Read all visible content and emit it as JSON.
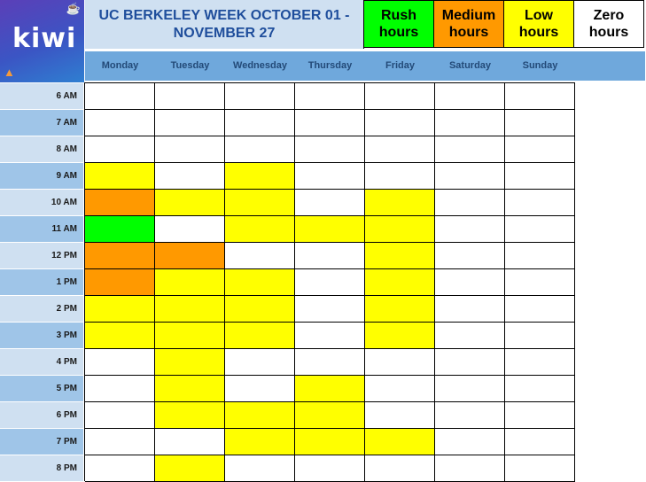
{
  "logo": {
    "text": "kiwi",
    "icon_top": "drink-icon",
    "icon_bottom": "pizza-icon"
  },
  "title": "UC BERKELEY WEEK OCTOBER 01 - NOVEMBER 27",
  "legend": [
    {
      "label": "Rush hours",
      "color": "#00ff00",
      "key": "rush"
    },
    {
      "label": "Medium hours",
      "color": "#ff9900",
      "key": "medium"
    },
    {
      "label": "Low hours",
      "color": "#ffff00",
      "key": "low"
    },
    {
      "label": "Zero hours",
      "color": "#ffffff",
      "key": "zero"
    }
  ],
  "days": [
    "Monday",
    "Tuesday",
    "Wednesday",
    "Thursday",
    "Friday",
    "Saturday",
    "Sunday"
  ],
  "hours": [
    "6 AM",
    "7 AM",
    "8 AM",
    "9 AM",
    "10 AM",
    "11 AM",
    "12 PM",
    "1 PM",
    "2 PM",
    "3 PM",
    "4 PM",
    "5 PM",
    "6 PM",
    "7 PM",
    "8 PM"
  ],
  "colors": {
    "rush": "#00ff00",
    "medium": "#ff9900",
    "low": "#ffff00",
    "zero": "#ffffff"
  },
  "label_band_colors": {
    "light": "#cfe0f1",
    "dark": "#9fc5e8"
  },
  "grid": [
    [
      "zero",
      "zero",
      "zero",
      "zero",
      "zero",
      "zero",
      "zero"
    ],
    [
      "zero",
      "zero",
      "zero",
      "zero",
      "zero",
      "zero",
      "zero"
    ],
    [
      "zero",
      "zero",
      "zero",
      "zero",
      "zero",
      "zero",
      "zero"
    ],
    [
      "low",
      "zero",
      "low",
      "zero",
      "zero",
      "zero",
      "zero"
    ],
    [
      "medium",
      "low",
      "low",
      "zero",
      "low",
      "zero",
      "zero"
    ],
    [
      "rush",
      "zero",
      "low",
      "low",
      "low",
      "zero",
      "zero"
    ],
    [
      "medium",
      "medium",
      "zero",
      "zero",
      "low",
      "zero",
      "zero"
    ],
    [
      "medium",
      "low",
      "low",
      "zero",
      "low",
      "zero",
      "zero"
    ],
    [
      "low",
      "low",
      "low",
      "zero",
      "low",
      "zero",
      "zero"
    ],
    [
      "low",
      "low",
      "low",
      "zero",
      "low",
      "zero",
      "zero"
    ],
    [
      "zero",
      "low",
      "zero",
      "zero",
      "zero",
      "zero",
      "zero"
    ],
    [
      "zero",
      "low",
      "zero",
      "low",
      "zero",
      "zero",
      "zero"
    ],
    [
      "zero",
      "low",
      "low",
      "low",
      "zero",
      "zero",
      "zero"
    ],
    [
      "zero",
      "zero",
      "low",
      "low",
      "low",
      "zero",
      "zero"
    ],
    [
      "zero",
      "low",
      "zero",
      "zero",
      "zero",
      "zero",
      "zero"
    ]
  ]
}
